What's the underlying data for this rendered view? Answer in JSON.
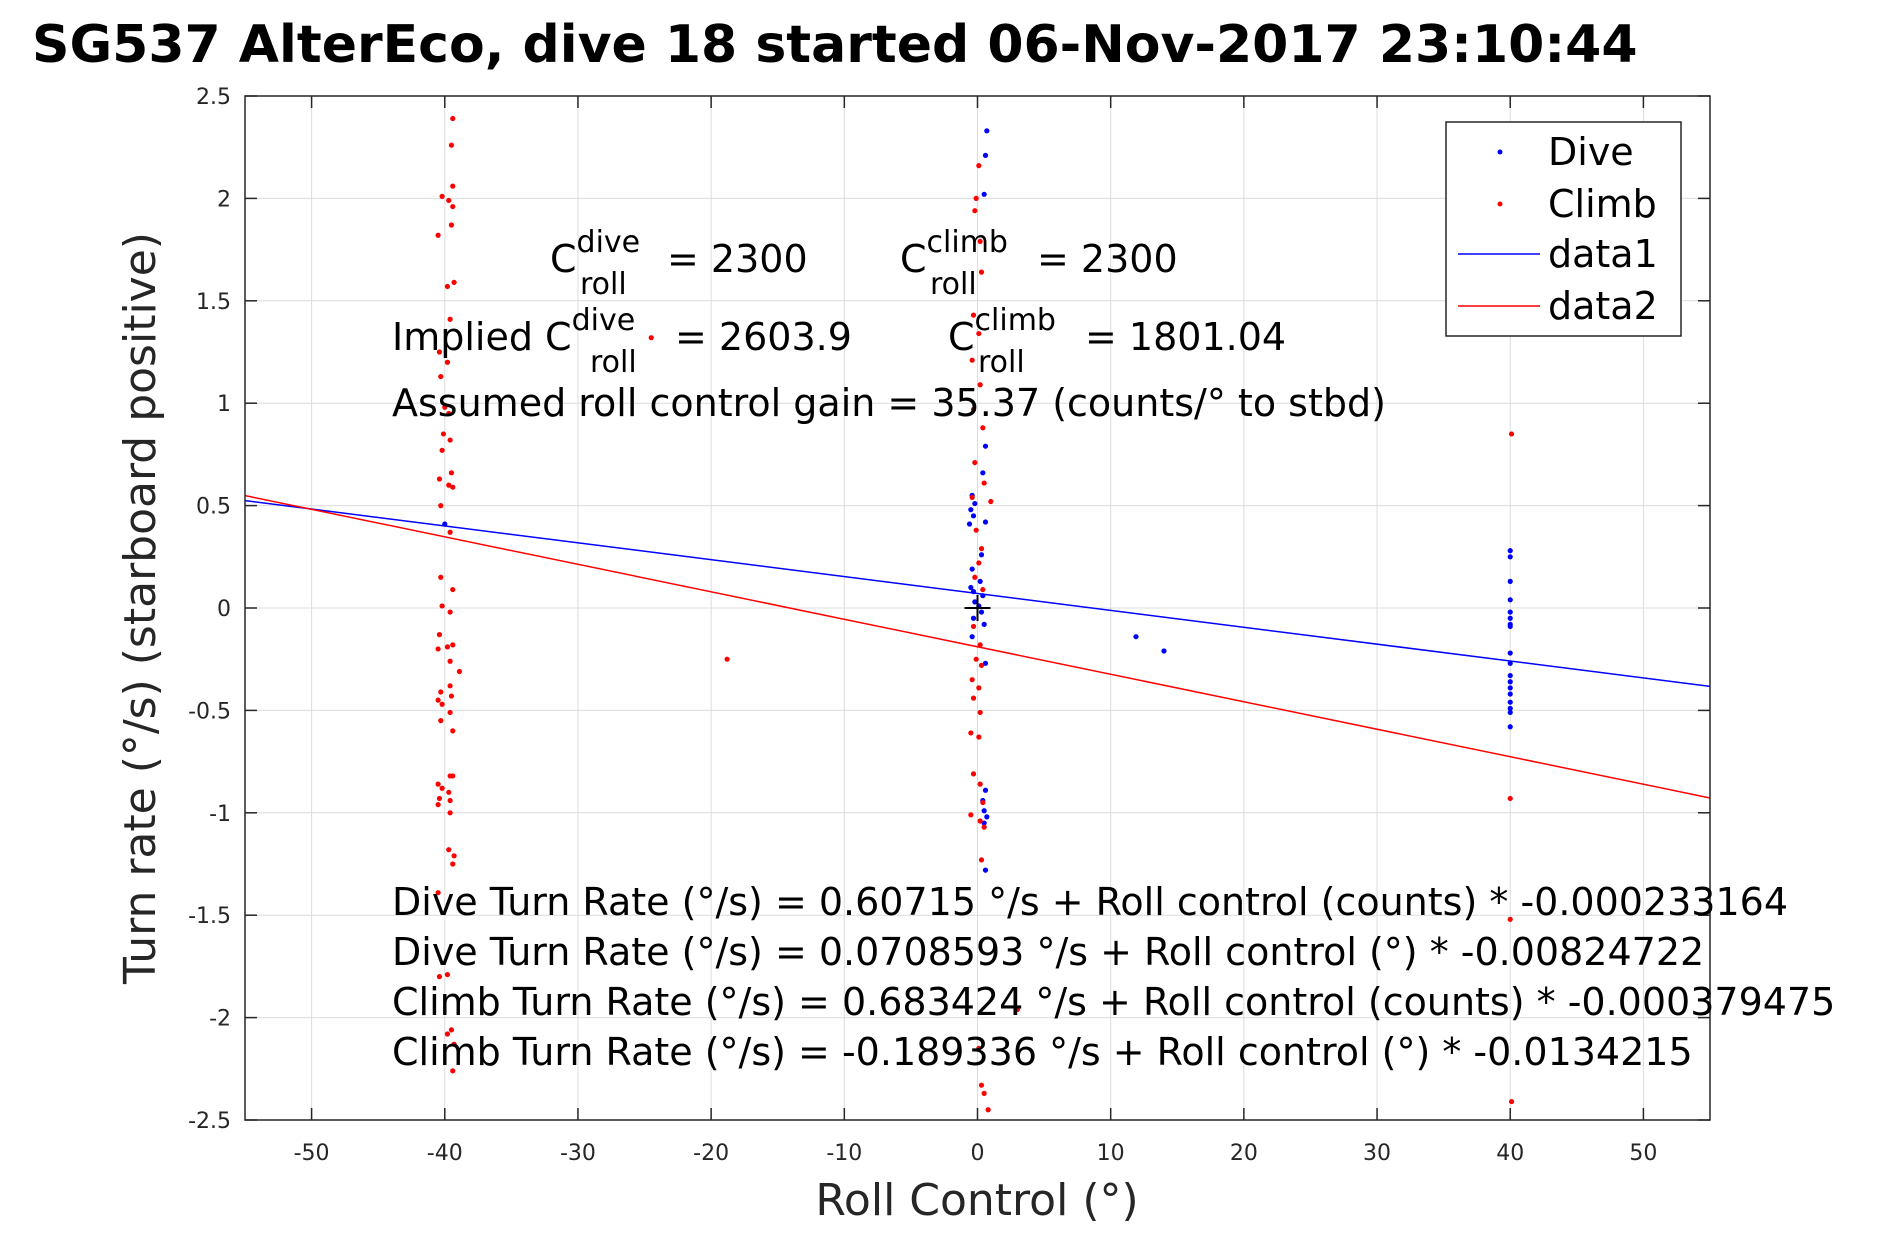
{
  "chart_data": {
    "type": "scatter",
    "title": "SG537 AlterEco, dive 18 started 06-Nov-2017 23:10:44",
    "xlabel": "Roll Control (°)",
    "ylabel": "Turn rate (°/s) (starboard positive)",
    "xlim": [
      -55,
      55
    ],
    "ylim": [
      -2.5,
      2.5
    ],
    "grid": true,
    "legend_position": "top-right",
    "xticks": [
      -50,
      -40,
      -30,
      -20,
      -10,
      0,
      10,
      20,
      30,
      40,
      50
    ],
    "xtick_labels": [
      "-50",
      "-40",
      "-30",
      "-20",
      "-10",
      "0",
      "10",
      "20",
      "30",
      "40",
      "50"
    ],
    "yticks": [
      2.5,
      2,
      1.5,
      1,
      0.5,
      0,
      -0.5,
      -1,
      -1.5,
      -2,
      -2.5
    ],
    "ytick_labels": [
      "2.5",
      "2",
      "1.5",
      "1",
      "0.5",
      "0",
      "-0.5",
      "-1",
      "-1.5",
      "-2",
      "-2.5"
    ],
    "colors": {
      "dive": "#0000ff",
      "climb": "#ff0000",
      "axis": "#262626",
      "grid": "#dcdcdc"
    },
    "series": [
      {
        "name": "Dive",
        "kind": "points",
        "color": "#0000ff",
        "points": [
          [
            -40.0,
            0.41
          ],
          [
            0.7,
            2.33
          ],
          [
            0.6,
            2.21
          ],
          [
            0.5,
            2.02
          ],
          [
            0.6,
            0.79
          ],
          [
            0.4,
            0.66
          ],
          [
            0.6,
            0.42
          ],
          [
            -0.4,
            0.55
          ],
          [
            -0.2,
            0.51
          ],
          [
            -0.5,
            0.48
          ],
          [
            -0.3,
            0.45
          ],
          [
            -0.6,
            0.41
          ],
          [
            0.3,
            0.26
          ],
          [
            -0.4,
            0.19
          ],
          [
            0.2,
            0.13
          ],
          [
            -0.5,
            0.1
          ],
          [
            -0.3,
            0.08
          ],
          [
            0.4,
            0.06
          ],
          [
            -0.2,
            0.03
          ],
          [
            0.1,
            0.01
          ],
          [
            0.3,
            -0.02
          ],
          [
            -0.3,
            -0.05
          ],
          [
            0.5,
            -0.08
          ],
          [
            -0.4,
            -0.14
          ],
          [
            0.6,
            -0.27
          ],
          [
            0.6,
            -0.89
          ],
          [
            0.4,
            -0.94
          ],
          [
            0.5,
            -0.99
          ],
          [
            0.7,
            -1.02
          ],
          [
            0.5,
            -1.05
          ],
          [
            0.6,
            -1.28
          ],
          [
            11.9,
            -0.14
          ],
          [
            14.0,
            -0.21
          ],
          [
            40.0,
            0.28
          ],
          [
            40.0,
            0.25
          ],
          [
            40.0,
            0.13
          ],
          [
            40.0,
            0.04
          ],
          [
            40.0,
            -0.02
          ],
          [
            40.0,
            -0.05
          ],
          [
            40.0,
            -0.08
          ],
          [
            40.0,
            -0.09
          ],
          [
            40.0,
            -0.22
          ],
          [
            40.0,
            -0.27
          ],
          [
            40.0,
            -0.33
          ],
          [
            40.0,
            -0.36
          ],
          [
            40.0,
            -0.39
          ],
          [
            40.0,
            -0.42
          ],
          [
            40.0,
            -0.46
          ],
          [
            40.0,
            -0.49
          ],
          [
            40.0,
            -0.51
          ],
          [
            40.0,
            -0.58
          ]
        ]
      },
      {
        "name": "Climb",
        "kind": "points",
        "color": "#ff0000",
        "points": [
          [
            -39.4,
            2.39
          ],
          [
            -39.5,
            2.26
          ],
          [
            -39.4,
            2.06
          ],
          [
            -40.2,
            2.01
          ],
          [
            -39.7,
            1.99
          ],
          [
            -39.4,
            1.96
          ],
          [
            -39.5,
            1.87
          ],
          [
            -40.5,
            1.82
          ],
          [
            -39.3,
            1.59
          ],
          [
            -39.8,
            1.57
          ],
          [
            -39.6,
            1.41
          ],
          [
            -40.4,
            1.25
          ],
          [
            -39.8,
            1.2
          ],
          [
            -40.3,
            1.13
          ],
          [
            -40.0,
            0.98
          ],
          [
            -39.7,
            0.95
          ],
          [
            -40.1,
            0.85
          ],
          [
            -39.6,
            0.82
          ],
          [
            -40.2,
            0.77
          ],
          [
            -39.5,
            0.66
          ],
          [
            -40.4,
            0.63
          ],
          [
            -39.7,
            0.6
          ],
          [
            -39.4,
            0.59
          ],
          [
            -40.3,
            0.5
          ],
          [
            -39.6,
            0.37
          ],
          [
            -40.3,
            0.15
          ],
          [
            -39.4,
            0.09
          ],
          [
            -40.2,
            0.01
          ],
          [
            -39.6,
            -0.02
          ],
          [
            -40.4,
            -0.13
          ],
          [
            -39.8,
            -0.19
          ],
          [
            -39.4,
            -0.18
          ],
          [
            -40.5,
            -0.2
          ],
          [
            -39.6,
            -0.26
          ],
          [
            -38.9,
            -0.31
          ],
          [
            -40.3,
            -0.41
          ],
          [
            -39.6,
            -0.38
          ],
          [
            -40.5,
            -0.45
          ],
          [
            -39.5,
            -0.43
          ],
          [
            -40.2,
            -0.47
          ],
          [
            -39.6,
            -0.51
          ],
          [
            -40.3,
            -0.55
          ],
          [
            -39.4,
            -0.6
          ],
          [
            -39.6,
            -0.82
          ],
          [
            -39.4,
            -0.82
          ],
          [
            -40.5,
            -0.86
          ],
          [
            -40.2,
            -0.88
          ],
          [
            -39.7,
            -0.9
          ],
          [
            -40.4,
            -0.93
          ],
          [
            -39.6,
            -0.94
          ],
          [
            -40.5,
            -0.96
          ],
          [
            -39.6,
            -1.0
          ],
          [
            -39.7,
            -1.18
          ],
          [
            -39.3,
            -1.21
          ],
          [
            -39.4,
            -1.25
          ],
          [
            -40.5,
            -1.39
          ],
          [
            -39.8,
            -1.79
          ],
          [
            -40.4,
            -1.8
          ],
          [
            -39.5,
            -2.06
          ],
          [
            -39.8,
            -2.08
          ],
          [
            -39.3,
            -2.13
          ],
          [
            -39.4,
            -2.26
          ],
          [
            -24.5,
            1.32
          ],
          [
            -18.8,
            -0.25
          ],
          [
            0.1,
            2.16
          ],
          [
            -0.1,
            2.0
          ],
          [
            -0.2,
            1.94
          ],
          [
            0.2,
            1.79
          ],
          [
            0.3,
            1.64
          ],
          [
            -0.3,
            1.43
          ],
          [
            0.1,
            1.34
          ],
          [
            -0.4,
            1.21
          ],
          [
            0.2,
            1.09
          ],
          [
            -0.3,
            0.97
          ],
          [
            0.4,
            0.88
          ],
          [
            -0.2,
            0.71
          ],
          [
            0.5,
            0.61
          ],
          [
            -0.4,
            0.54
          ],
          [
            1.0,
            0.52
          ],
          [
            -0.1,
            0.38
          ],
          [
            0.3,
            0.29
          ],
          [
            0.1,
            0.22
          ],
          [
            -0.2,
            0.15
          ],
          [
            0.4,
            0.09
          ],
          [
            -0.3,
            -0.09
          ],
          [
            0.2,
            -0.18
          ],
          [
            -0.1,
            -0.25
          ],
          [
            0.3,
            -0.28
          ],
          [
            -0.4,
            -0.35
          ],
          [
            0.1,
            -0.39
          ],
          [
            -0.3,
            -0.44
          ],
          [
            0.2,
            -0.51
          ],
          [
            -0.5,
            -0.61
          ],
          [
            0.1,
            -0.63
          ],
          [
            -0.3,
            -0.81
          ],
          [
            0.2,
            -0.86
          ],
          [
            0.4,
            -0.95
          ],
          [
            -0.5,
            -1.01
          ],
          [
            0.2,
            -1.04
          ],
          [
            0.5,
            -1.07
          ],
          [
            0.3,
            -1.23
          ],
          [
            3.0,
            -1.96
          ],
          [
            0.1,
            -2.15
          ],
          [
            0.3,
            -2.33
          ],
          [
            0.5,
            -2.37
          ],
          [
            0.8,
            -2.45
          ],
          [
            40.1,
            0.85
          ],
          [
            40.0,
            -0.93
          ],
          [
            40.0,
            -1.52
          ],
          [
            40.1,
            -2.41
          ]
        ]
      },
      {
        "name": "data1",
        "kind": "line",
        "color": "#0000ff",
        "intercept": 0.0708593,
        "slope": -0.00824722,
        "x": [
          -55,
          55
        ]
      },
      {
        "name": "data2",
        "kind": "line",
        "color": "#ff0000",
        "intercept": -0.189336,
        "slope": -0.0134215,
        "x": [
          -55,
          55
        ]
      }
    ],
    "center_marker": {
      "label": "+",
      "x": 0,
      "y": 0
    },
    "annotations": {
      "c_roll_dive": {
        "base": "C",
        "sup": "dive",
        "sub": "roll",
        "value": "= 2300"
      },
      "c_roll_climb": {
        "base": "C",
        "sup": "climb",
        "sub": "roll",
        "value": "= 2300"
      },
      "implied_prefix": "Implied ",
      "implied_dive": {
        "base": "C",
        "sup": "dive",
        "sub": "roll",
        "value": "= 2603.9"
      },
      "implied_climb": {
        "base": "C",
        "sup": "climb",
        "sub": "roll",
        "value": "= 1801.04"
      },
      "gain": "Assumed roll control gain = 35.37 (counts/° to stbd)",
      "fit_lines": [
        "Dive Turn Rate (°/s) = 0.60715 °/s + Roll control (counts) * -0.000233164",
        "Dive Turn Rate (°/s) = 0.0708593 °/s + Roll control (°) * -0.00824722",
        "Climb Turn Rate (°/s) = 0.683424 °/s + Roll control (counts) * -0.000379475",
        "Climb Turn Rate (°/s) = -0.189336 °/s + Roll control (°) * -0.0134215"
      ]
    }
  }
}
